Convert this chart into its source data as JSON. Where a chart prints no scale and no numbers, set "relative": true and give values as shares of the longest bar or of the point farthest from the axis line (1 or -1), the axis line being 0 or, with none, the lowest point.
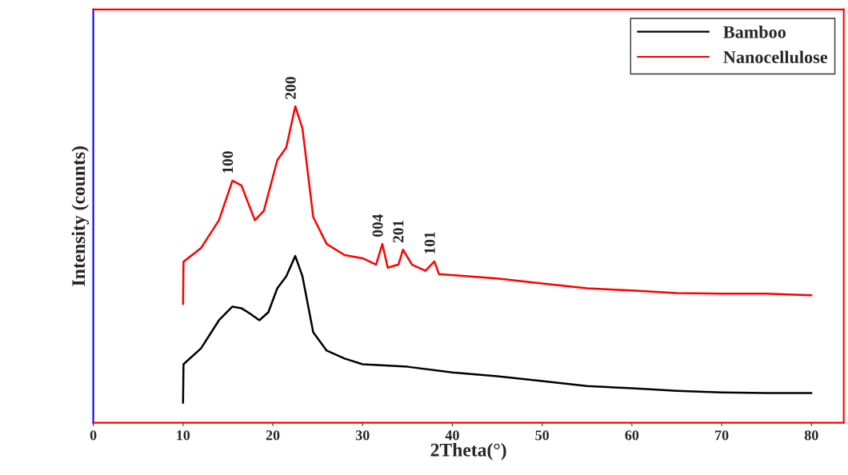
{
  "chart_data": {
    "type": "line",
    "xlabel": "2Theta(°)",
    "ylabel": "Intensity (counts)",
    "relative": true,
    "xlim": [
      0,
      83.6
    ],
    "xticks": [
      0,
      10,
      20,
      30,
      40,
      50,
      60,
      70,
      80
    ],
    "tick_labels": "x",
    "legend": "top right",
    "grid": false,
    "series": [
      {
        "name": "Bamboo",
        "color": "#000000",
        "x": [
          10,
          10.05,
          12,
          14,
          15.5,
          16.5,
          17.5,
          18.5,
          19.5,
          20.5,
          21.5,
          22.5,
          23.3,
          24.5,
          26,
          28,
          30,
          35,
          40,
          45,
          50,
          55,
          60,
          65,
          70,
          75,
          80
        ],
        "values": [
          0.063,
          0.185,
          0.235,
          0.324,
          0.367,
          0.362,
          0.344,
          0.324,
          0.349,
          0.425,
          0.463,
          0.527,
          0.463,
          0.286,
          0.228,
          0.203,
          0.185,
          0.177,
          0.159,
          0.147,
          0.132,
          0.116,
          0.109,
          0.101,
          0.096,
          0.094,
          0.094
        ]
      },
      {
        "name": "Nanocellulose",
        "color": "#ff0000",
        "x": [
          10,
          10.05,
          12,
          14,
          15.5,
          16.5,
          18,
          19,
          20.5,
          21.5,
          22.5,
          23.3,
          24.5,
          26,
          28,
          30,
          31.5,
          32.2,
          32.8,
          34,
          34.5,
          35.5,
          37,
          38,
          38.5,
          45,
          50,
          55,
          60,
          65,
          70,
          75,
          80
        ],
        "values": [
          0.375,
          0.509,
          0.552,
          0.64,
          0.765,
          0.75,
          0.64,
          0.67,
          0.83,
          0.87,
          1.0,
          0.93,
          0.65,
          0.565,
          0.53,
          0.52,
          0.5,
          0.565,
          0.49,
          0.5,
          0.547,
          0.5,
          0.48,
          0.51,
          0.47,
          0.456,
          0.44,
          0.425,
          0.418,
          0.41,
          0.408,
          0.408,
          0.403
        ]
      }
    ],
    "annotations": [
      {
        "text": "100",
        "x": 15.5,
        "y": 0.765
      },
      {
        "text": "200",
        "x": 22.5,
        "y": 1.0
      },
      {
        "text": "004",
        "x": 32.2,
        "y": 0.565
      },
      {
        "text": "201",
        "x": 34.5,
        "y": 0.547
      },
      {
        "text": "101",
        "x": 38,
        "y": 0.51
      }
    ]
  }
}
